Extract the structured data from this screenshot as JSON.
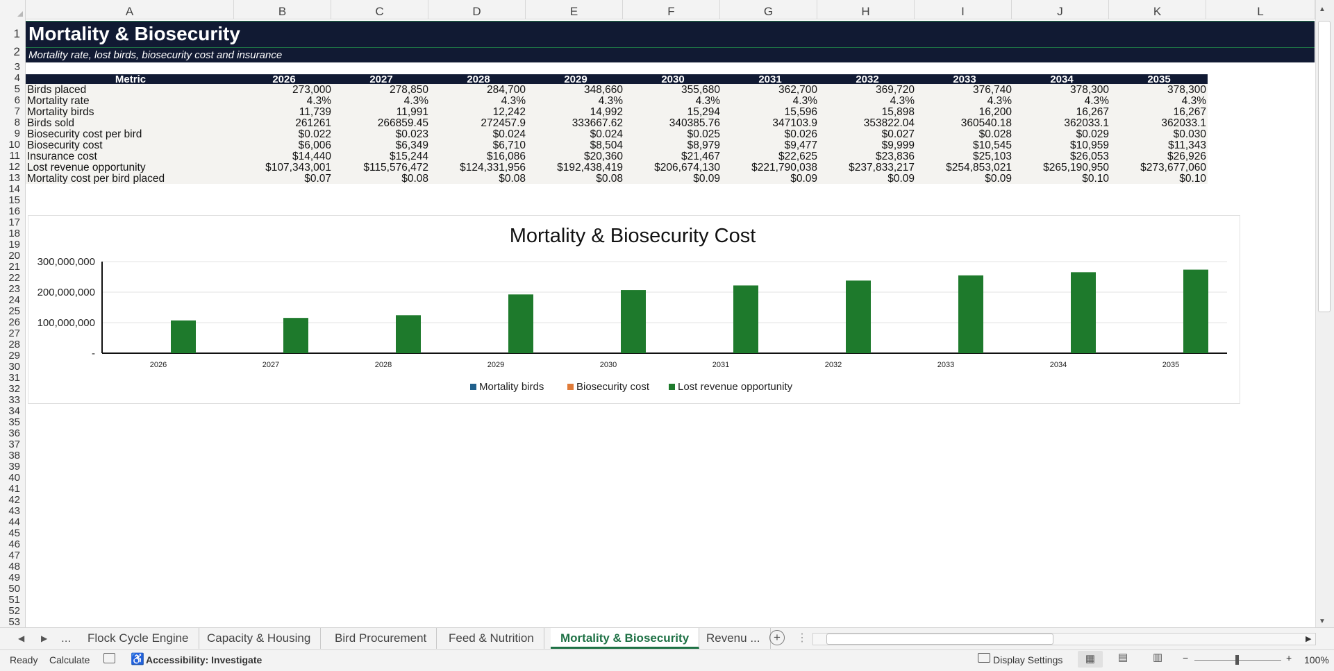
{
  "columns": [
    "A",
    "B",
    "C",
    "D",
    "E",
    "F",
    "G",
    "H",
    "I",
    "J",
    "K",
    "L"
  ],
  "rows": [
    "1",
    "2",
    "3",
    "4",
    "5",
    "6",
    "7",
    "8",
    "9",
    "10",
    "11",
    "12",
    "13",
    "14",
    "15",
    "16",
    "17",
    "18",
    "19",
    "20",
    "21",
    "22",
    "23",
    "24",
    "25",
    "26",
    "27",
    "28",
    "29",
    "30",
    "31",
    "32",
    "33",
    "34",
    "35",
    "36",
    "37",
    "38",
    "39",
    "40",
    "41",
    "42",
    "43",
    "44",
    "45",
    "46",
    "47",
    "48",
    "49",
    "50",
    "51",
    "52",
    "53"
  ],
  "sheet": {
    "title": "Mortality & Biosecurity",
    "subtitle": "Mortality rate, lost birds, biosecurity cost and insurance"
  },
  "table": {
    "headers": [
      "Metric",
      "2026",
      "2027",
      "2028",
      "2029",
      "2030",
      "2031",
      "2032",
      "2033",
      "2034",
      "2035"
    ],
    "rows": [
      [
        "Birds placed",
        "273,000",
        "278,850",
        "284,700",
        "348,660",
        "355,680",
        "362,700",
        "369,720",
        "376,740",
        "378,300",
        "378,300"
      ],
      [
        "Mortality rate",
        "4.3%",
        "4.3%",
        "4.3%",
        "4.3%",
        "4.3%",
        "4.3%",
        "4.3%",
        "4.3%",
        "4.3%",
        "4.3%"
      ],
      [
        "Mortality birds",
        "11,739",
        "11,991",
        "12,242",
        "14,992",
        "15,294",
        "15,596",
        "15,898",
        "16,200",
        "16,267",
        "16,267"
      ],
      [
        "Birds sold",
        "261261",
        "266859.45",
        "272457.9",
        "333667.62",
        "340385.76",
        "347103.9",
        "353822.04",
        "360540.18",
        "362033.1",
        "362033.1"
      ],
      [
        "Biosecurity cost per bird",
        "$0.022",
        "$0.023",
        "$0.024",
        "$0.024",
        "$0.025",
        "$0.026",
        "$0.027",
        "$0.028",
        "$0.029",
        "$0.030"
      ],
      [
        "Biosecurity cost",
        "$6,006",
        "$6,349",
        "$6,710",
        "$8,504",
        "$8,979",
        "$9,477",
        "$9,999",
        "$10,545",
        "$10,959",
        "$11,343"
      ],
      [
        "Insurance cost",
        "$14,440",
        "$15,244",
        "$16,086",
        "$20,360",
        "$21,467",
        "$22,625",
        "$23,836",
        "$25,103",
        "$26,053",
        "$26,926"
      ],
      [
        "Lost revenue opportunity",
        "$107,343,001",
        "$115,576,472",
        "$124,331,956",
        "$192,438,419",
        "$206,674,130",
        "$221,790,038",
        "$237,833,217",
        "$254,853,021",
        "$265,190,950",
        "$273,677,060"
      ],
      [
        "Mortality cost per bird placed",
        "$0.07",
        "$0.08",
        "$0.08",
        "$0.08",
        "$0.09",
        "$0.09",
        "$0.09",
        "$0.09",
        "$0.10",
        "$0.10"
      ]
    ]
  },
  "chart_data": {
    "type": "bar",
    "title": "Mortality & Biosecurity Cost",
    "categories": [
      "2026",
      "2027",
      "2028",
      "2029",
      "2030",
      "2031",
      "2032",
      "2033",
      "2034",
      "2035"
    ],
    "series": [
      {
        "name": "Mortality birds",
        "color": "#1f5f8b",
        "values": [
          11739,
          11991,
          12242,
          14992,
          15294,
          15596,
          15898,
          16200,
          16267,
          16267
        ]
      },
      {
        "name": "Biosecurity cost",
        "color": "#e07b39",
        "values": [
          6006,
          6349,
          6710,
          8504,
          8979,
          9477,
          9999,
          10545,
          10959,
          11343
        ]
      },
      {
        "name": "Lost revenue opportunity",
        "color": "#1e7a2c",
        "values": [
          107343001,
          115576472,
          124331956,
          192438419,
          206674130,
          221790038,
          237833217,
          254853021,
          265190950,
          273677060
        ]
      }
    ],
    "ylim": [
      0,
      300000000
    ],
    "yticks": [
      "-",
      "100,000,000",
      "200,000,000",
      "300,000,000"
    ],
    "grid": true,
    "legend": "bottom"
  },
  "tabs": {
    "more": "...",
    "items": [
      "Flock Cycle Engine",
      "Capacity & Housing",
      "Bird Procurement",
      "Feed & Nutrition",
      "Mortality & Biosecurity",
      "Revenu ..."
    ],
    "active_index": 4
  },
  "status": {
    "ready": "Ready",
    "calculate": "Calculate",
    "accessibility": "Accessibility: Investigate",
    "display_settings": "Display Settings",
    "zoom": "100%"
  },
  "colors": {
    "header_navy": "#111a33",
    "accent_green": "#1e7145",
    "bar_green": "#1e7a2c"
  }
}
